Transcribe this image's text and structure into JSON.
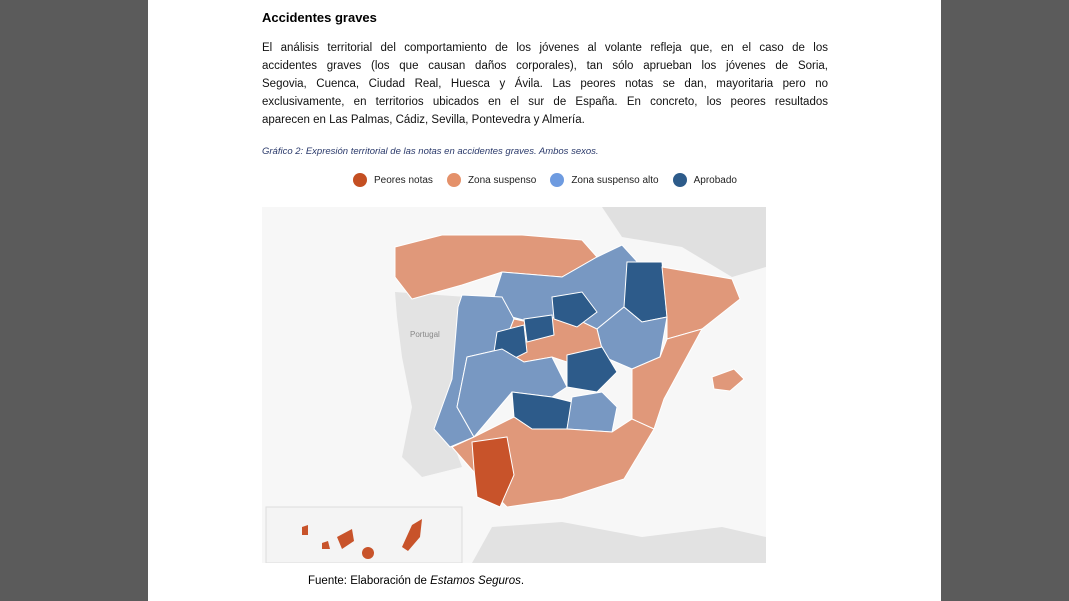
{
  "heading": "Accidentes graves",
  "paragraph_lines": [
    "El análisis territorial del comportamiento de los jóvenes al volante refleja que, en el caso de los",
    "accidentes graves (los que causan daños corporales), tan sólo aprueban los jóvenes de Soria,",
    "Segovia, Cuenca, Ciudad Real, Huesca y Ávila. Las peores notas se dan, mayoritaria pero no",
    "exclusivamente, en territorios ubicados en el sur de España. En concreto, los peores resultados",
    "aparecen en Las Palmas, Cádiz, Sevilla, Pontevedra y Almería."
  ],
  "caption": "Gráfico 2: Expresión territorial de las notas en accidentes graves. Ambos sexos.",
  "legend": [
    {
      "label": "Peores notas",
      "color": "#c44f22"
    },
    {
      "label": "Zona suspenso",
      "color": "#e4916a"
    },
    {
      "label": "Zona suspenso alto",
      "color": "#6e9be0"
    },
    {
      "label": "Aprobado",
      "color": "#2d5b8a"
    }
  ],
  "map_label": "Portugal",
  "source": {
    "prefix": "Fuente: Elaboración de ",
    "emphasis": "Estamos Seguros",
    "suffix": "."
  }
}
